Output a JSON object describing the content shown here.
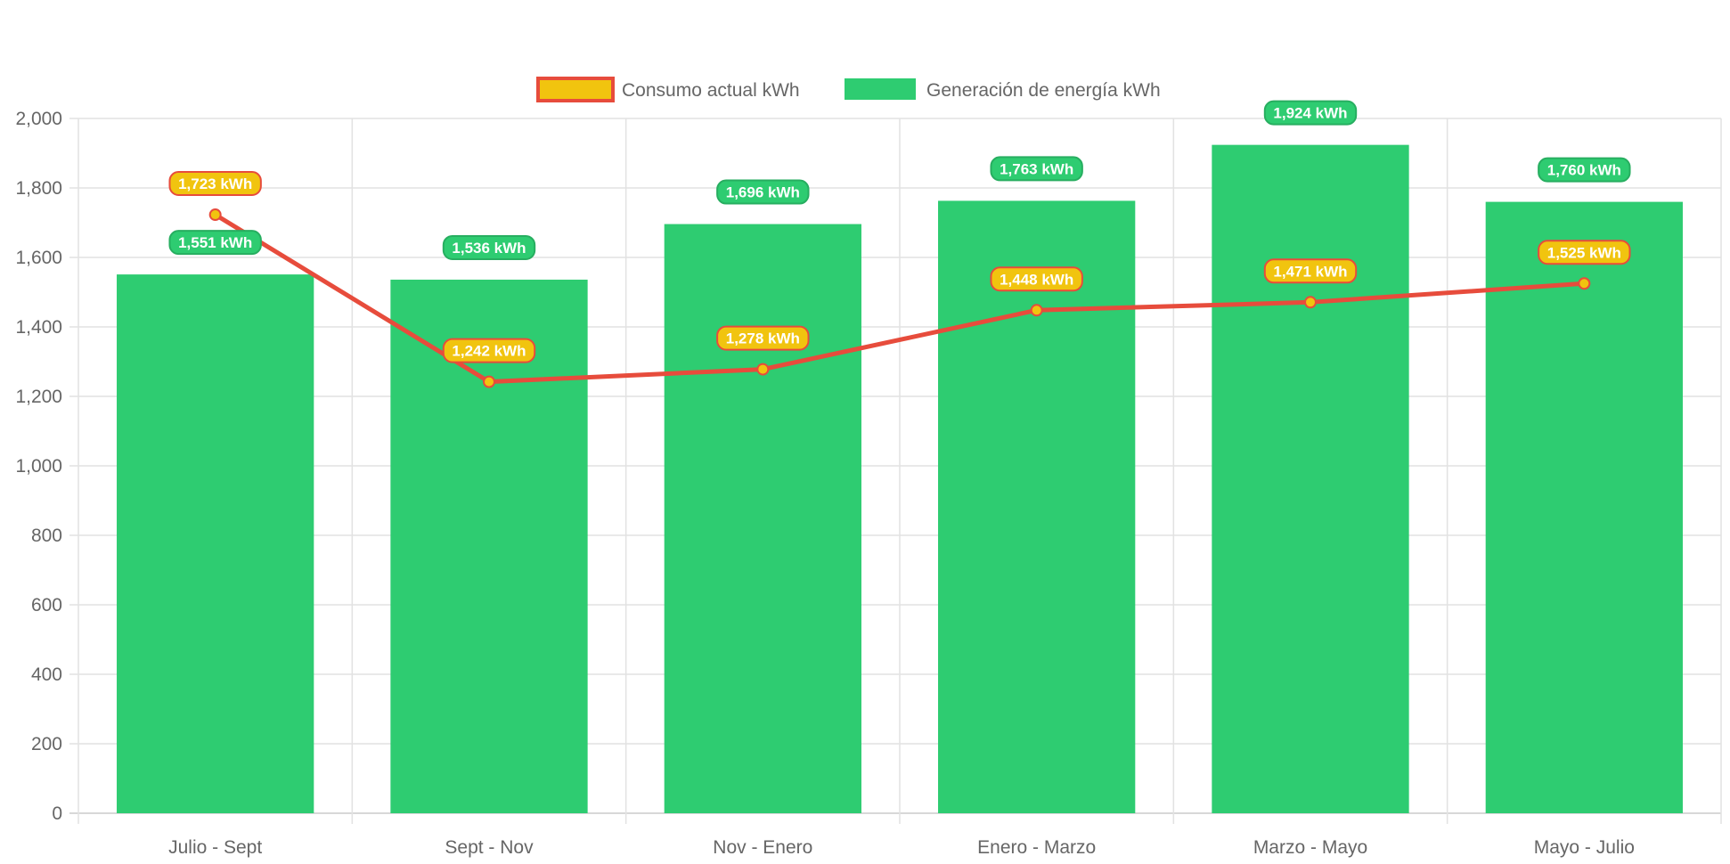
{
  "chart_data": {
    "type": "bar",
    "categories": [
      "Julio - Sept",
      "Sept - Nov",
      "Nov - Enero",
      "Enero - Marzo",
      "Marzo - Mayo",
      "Mayo - Julio"
    ],
    "series": [
      {
        "name": "Consumo actual kWh",
        "type": "line",
        "values": [
          1723,
          1242,
          1278,
          1448,
          1471,
          1525
        ],
        "color": "#e74c3c",
        "fill": "#f1c40f"
      },
      {
        "name": "Generación de energía kWh",
        "type": "bar",
        "values": [
          1551,
          1536,
          1696,
          1763,
          1924,
          1760
        ],
        "color": "#2ecc71",
        "border": "#27ae60"
      }
    ],
    "data_label_unit": "kWh",
    "yticks": [
      "0",
      "200",
      "400",
      "600",
      "800",
      "1,000",
      "1,200",
      "1,400",
      "1,600",
      "1,800",
      "2,000"
    ],
    "ylim": [
      0,
      2000
    ],
    "grid": true,
    "legend_position": "top",
    "title": "",
    "xlabel": "",
    "ylabel": ""
  }
}
